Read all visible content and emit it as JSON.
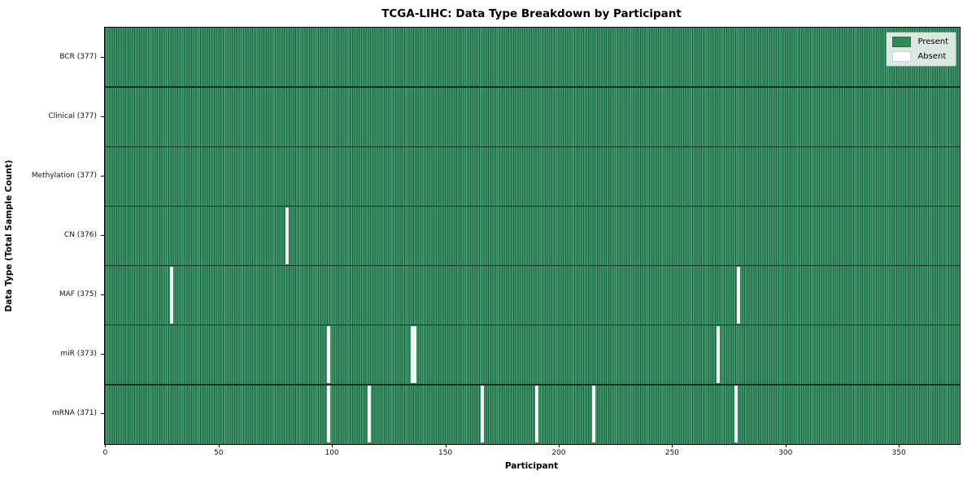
{
  "chart_data": {
    "type": "heatmap",
    "title": "TCGA-LIHC: Data Type Breakdown by Participant",
    "xlabel": "Participant",
    "ylabel": "Data Type (Total Sample Count)",
    "n_participants": 377,
    "xlim": [
      -0.5,
      376.5
    ],
    "x_ticks": [
      0,
      50,
      100,
      150,
      200,
      250,
      300,
      350
    ],
    "grid": "cell-edges",
    "legend_position": "upper right",
    "legend": [
      {
        "label": "Present",
        "color": "#2e8b57"
      },
      {
        "label": "Absent",
        "color": "#ffffff"
      }
    ],
    "rows": [
      {
        "label": "BCR (377)",
        "data_type": "BCR",
        "present_count": 377,
        "absent_participants": []
      },
      {
        "label": "Clinical (377)",
        "data_type": "Clinical",
        "present_count": 377,
        "absent_participants": []
      },
      {
        "label": "Methylation (377)",
        "data_type": "Methylation",
        "present_count": 377,
        "absent_participants": []
      },
      {
        "label": "CN (376)",
        "data_type": "CN",
        "present_count": 376,
        "absent_participants": [
          80
        ]
      },
      {
        "label": "MAF (375)",
        "data_type": "MAF",
        "present_count": 375,
        "absent_participants": [
          29,
          279
        ]
      },
      {
        "label": "miR (373)",
        "data_type": "miR",
        "present_count": 373,
        "absent_participants": [
          98,
          135,
          136,
          270
        ]
      },
      {
        "label": "mRNA (371)",
        "data_type": "mRNA",
        "present_count": 371,
        "absent_participants": [
          98,
          116,
          166,
          190,
          215,
          278
        ]
      }
    ],
    "colors": {
      "present": "#2e8b57",
      "present_stripe_light": "#3e9a6c",
      "present_stripe_dark": "#205c3e",
      "absent": "#ffffff",
      "row_separator": "#0c2418"
    }
  }
}
